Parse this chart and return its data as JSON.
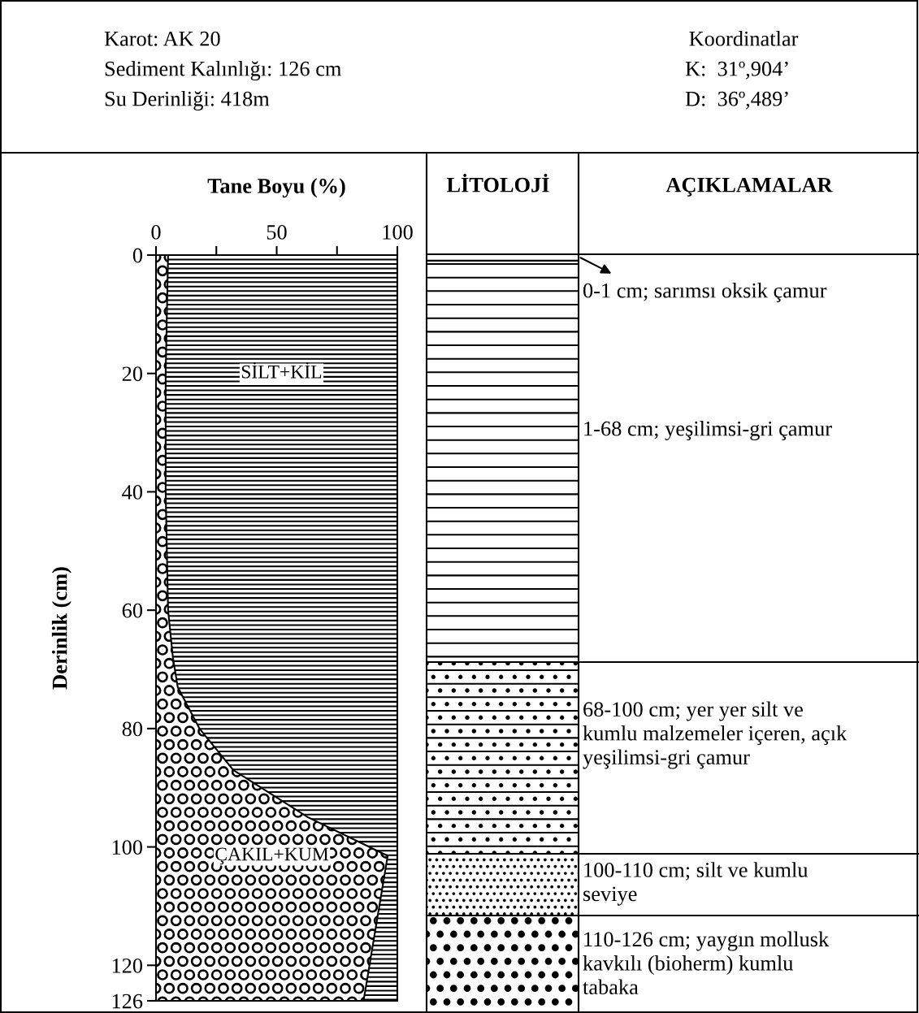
{
  "chart_data": {
    "type": "area",
    "orientation": "horizontal",
    "stacked": true,
    "title": "Tane Boyu (%)",
    "ylabel": "Derinlik (cm)",
    "x": [
      0,
      20,
      40,
      60,
      68,
      73,
      80,
      87,
      95,
      101.5,
      126
    ],
    "series": [
      {
        "name": "ÇAKIL+KUM",
        "color": "#000000",
        "values": [
          5,
          4,
          4,
          5,
          7,
          9,
          18,
          32,
          63,
          96,
          86
        ]
      },
      {
        "name": "SİLT+KİL",
        "color": "#000000",
        "values": [
          95,
          96,
          96,
          95,
          93,
          91,
          82,
          68,
          37,
          4,
          14
        ]
      }
    ],
    "xlim": [
      0,
      100
    ],
    "xticks": [
      0,
      {
        "value": 25,
        "label": null
      },
      50,
      {
        "value": 75,
        "label": null
      },
      100
    ],
    "ylim": [
      126,
      0
    ],
    "yticks": [
      0,
      20,
      40,
      60,
      80,
      100,
      120,
      126
    ],
    "grid": false,
    "legend": false,
    "annotations": [
      "Karot: AK 20",
      "Sediment Kalınlığı: 126 cm",
      "Su Derinliği: 418m",
      "Koordinatlar",
      "K:  31º,904’",
      "D:  36º,489’",
      "LİTOLOJİ",
      "AÇIKLAMALAR",
      "0-1 cm; sarımsı oksik çamur",
      "1-68 cm; yeşilimsi-gri çamur",
      "68-100 cm; yer yer silt ve\nkumlu malzemeler içeren, açık\nyeşilimsi-gri çamur",
      "100-110 cm; silt ve kumlu\nseviye",
      "110-126 cm; yaygın mollusk\nkavkılı (bioherm) kumlu\ntabaka"
    ]
  }
}
